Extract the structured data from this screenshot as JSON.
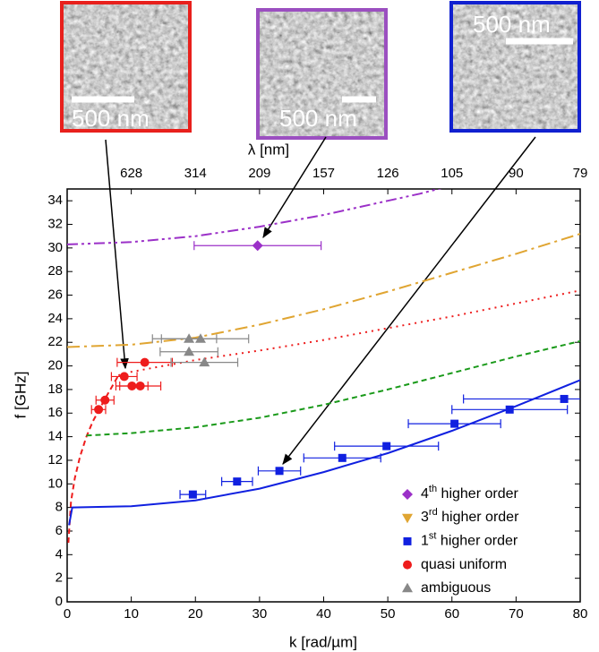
{
  "chart_data": {
    "type": "scatter",
    "x_label": "k [rad/µm]",
    "y_label": "f [GHz]",
    "x2_label": "λ [nm]",
    "xlim": [
      0,
      80
    ],
    "ylim": [
      0,
      35
    ],
    "xticks": [
      0,
      10,
      20,
      30,
      40,
      50,
      60,
      70,
      80
    ],
    "yticks": [
      0,
      2,
      4,
      6,
      8,
      10,
      12,
      14,
      16,
      18,
      20,
      22,
      24,
      26,
      28,
      30,
      32,
      34
    ],
    "x2ticks": [
      {
        "value": 10,
        "label": "628"
      },
      {
        "value": 20,
        "label": "314"
      },
      {
        "value": 30,
        "label": "209"
      },
      {
        "value": 40,
        "label": "157"
      },
      {
        "value": 50,
        "label": "126"
      },
      {
        "value": 60,
        "label": "105"
      },
      {
        "value": 70,
        "label": "90"
      },
      {
        "value": 80,
        "label": "79"
      }
    ],
    "legend": "lower right",
    "series": [
      {
        "name": "4th higher order",
        "color": "#9b30c8",
        "marker": "diamond",
        "x": [
          29.7
        ],
        "values": [
          30.2
        ],
        "xerr": [
          9.9
        ]
      },
      {
        "name": "3rd higher order",
        "color": "#e0a532",
        "marker": "triangle-down",
        "x": [],
        "values": [],
        "xerr": []
      },
      {
        "name": "1st higher order",
        "color": "#1020e0",
        "marker": "square",
        "x": [
          19.6,
          26.5,
          33.1,
          42.9,
          49.8,
          60.4,
          69.0,
          77.5
        ],
        "values": [
          9.1,
          10.2,
          11.1,
          12.2,
          13.2,
          15.1,
          16.3,
          17.2
        ],
        "xerr": [
          2.0,
          2.4,
          3.3,
          6.0,
          8.1,
          7.2,
          9.0,
          15.7
        ]
      },
      {
        "name": "quasi uniform",
        "color": "#ee1c1c",
        "marker": "circle",
        "x": [
          4.9,
          5.9,
          8.9,
          10.1,
          11.4,
          12.1
        ],
        "values": [
          16.3,
          17.1,
          19.1,
          18.3,
          18.3,
          20.3
        ],
        "xerr": [
          1.1,
          1.4,
          2.0,
          2.5,
          3.2,
          4.3
        ]
      },
      {
        "name": "ambiguous",
        "color": "#888888",
        "marker": "triangle-up",
        "x": [
          19.0,
          20.8,
          19.0,
          21.4
        ],
        "values": [
          22.3,
          22.3,
          21.2,
          20.3
        ],
        "xerr": [
          4.3,
          7.5,
          4.5,
          5.2
        ]
      }
    ],
    "curves": [
      {
        "color": "#9b30c8",
        "dash": "12 4 3 4 3 4",
        "x": [
          0,
          10,
          20,
          30,
          40,
          50,
          55,
          60
        ],
        "values": [
          30.3,
          30.5,
          31.0,
          31.8,
          32.8,
          34.0,
          34.6,
          35.3
        ]
      },
      {
        "color": "#e0a532",
        "dash": "14 5 3 5",
        "x": [
          0,
          10,
          20,
          30,
          40,
          50,
          60,
          70,
          80
        ],
        "values": [
          21.6,
          21.8,
          22.4,
          23.5,
          24.8,
          26.3,
          27.9,
          29.5,
          31.2
        ]
      },
      {
        "color": "#ee1c1c",
        "dash": "2 5",
        "x": [
          8,
          10,
          20,
          30,
          40,
          50,
          60,
          70,
          80
        ],
        "values": [
          19.2,
          19.5,
          20.5,
          21.3,
          22.2,
          23.2,
          24.2,
          25.3,
          26.4
        ]
      },
      {
        "color": "#ee1c1c",
        "dash": "6 4",
        "x": [
          0.2,
          0.6,
          1.2,
          2,
          3,
          4,
          5,
          6,
          8
        ],
        "values": [
          5.0,
          8.5,
          10.5,
          12.3,
          14.0,
          15.3,
          16.3,
          17.3,
          19.2
        ]
      },
      {
        "color": "#1a9a1a",
        "dash": "6 4",
        "x": [
          3,
          10,
          20,
          30,
          40,
          50,
          60,
          70,
          80
        ],
        "values": [
          14.1,
          14.3,
          14.8,
          15.6,
          16.7,
          18.0,
          19.4,
          20.8,
          22.1
        ]
      },
      {
        "color": "#1020e0",
        "dash": "",
        "x": [
          0.3,
          0.8,
          10,
          20,
          30,
          40,
          50,
          60,
          70,
          80
        ],
        "values": [
          6.5,
          8.0,
          8.1,
          8.6,
          9.6,
          11.0,
          12.6,
          14.5,
          16.6,
          18.8
        ]
      }
    ]
  },
  "insets": [
    {
      "color": "#e8201c",
      "label": "500 nm"
    },
    {
      "color": "#9b4fc0",
      "label": "500 nm"
    },
    {
      "color": "#1020d0",
      "label": "500 nm"
    }
  ]
}
